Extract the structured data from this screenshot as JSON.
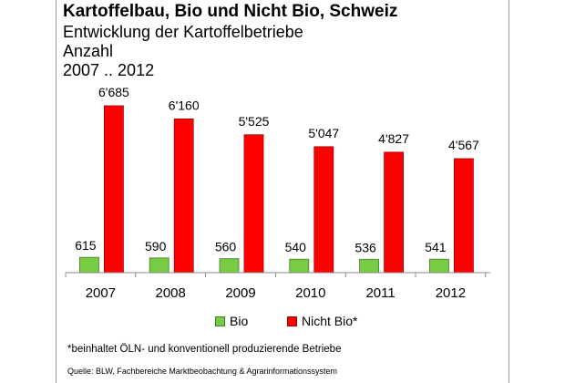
{
  "header": {
    "title": "Kartoffelbau, Bio und Nicht Bio, Schweiz",
    "subtitle_1": "Entwicklung der Kartoffelbetriebe",
    "subtitle_2": "Anzahl",
    "subtitle_3": "2007 .. 2012"
  },
  "chart_data": {
    "type": "bar",
    "categories": [
      "2007",
      "2008",
      "2009",
      "2010",
      "2011",
      "2012"
    ],
    "series": [
      {
        "name": "Bio",
        "values": [
          615,
          590,
          560,
          540,
          536,
          541
        ],
        "labels": [
          "615",
          "590",
          "560",
          "540",
          "536",
          "541"
        ],
        "color": "#77cc44"
      },
      {
        "name": "Nicht Bio*",
        "values": [
          6685,
          6160,
          5525,
          5047,
          4827,
          4567
        ],
        "labels": [
          "6'685",
          "6'160",
          "5'525",
          "5'047",
          "4'827",
          "4'567"
        ],
        "color": "#ff0000"
      }
    ],
    "ylim": [
      0,
      7000
    ],
    "grid": false,
    "legend_position": "bottom"
  },
  "legend": {
    "bio": "Bio",
    "nicht_bio": "Nicht Bio*"
  },
  "footnote": "*beinhaltet ÖLN- und konventionell produzierende Betriebe",
  "source": "Quelle: BLW, Fachbereiche Marktbeobachtung & Agrarinformationssystem"
}
